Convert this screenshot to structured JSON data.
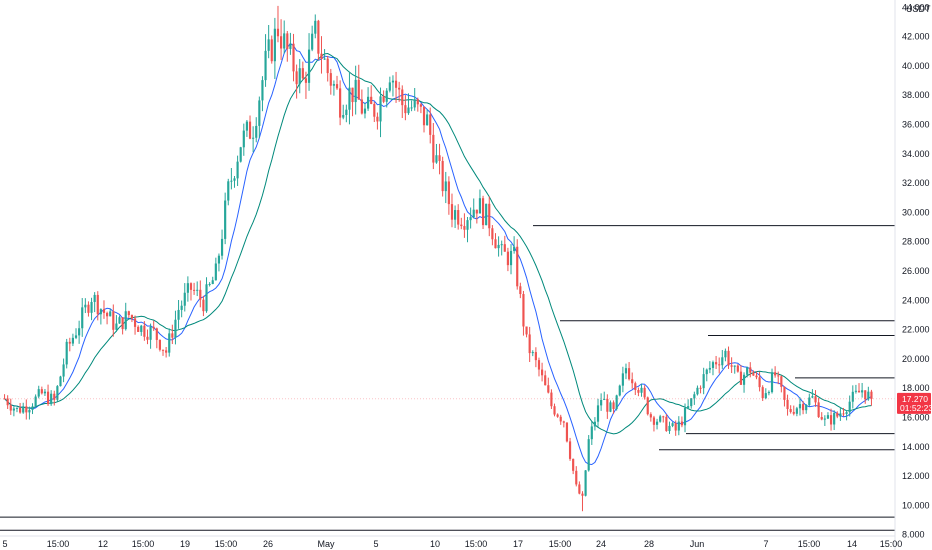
{
  "chart_data": {
    "type": "candlestick",
    "currency_label": "USDT",
    "ylim": [
      7.5,
      45.0
    ],
    "y_ticks": [
      8.0,
      10.0,
      12.0,
      14.0,
      16.0,
      18.0,
      20.0,
      22.0,
      24.0,
      26.0,
      28.0,
      30.0,
      32.0,
      34.0,
      36.0,
      38.0,
      40.0,
      42.0,
      44.0
    ],
    "y_tick_labels": [
      "8.000",
      "10.000",
      "12.000",
      "14.000",
      "16.000",
      "18.000",
      "20.000",
      "22.000",
      "24.000",
      "26.000",
      "28.000",
      "30.000",
      "32.000",
      "34.000",
      "36.000",
      "38.000",
      "40.000",
      "42.000",
      "44.000"
    ],
    "x_tick_labels": [
      "5",
      "15:00",
      "12",
      "15:00",
      "19",
      "15:00",
      "26",
      "May",
      "5",
      "10",
      "15:00",
      "17",
      "15:00",
      "24",
      "28",
      "Jun",
      "7",
      "15:00",
      "14",
      "15:00"
    ],
    "last_price_label": "17.270",
    "countdown_label": "01:52:23",
    "last_price": 17.27,
    "horizontal_levels": [
      29.1,
      22.6,
      21.6,
      18.7,
      14.9,
      13.8,
      9.2,
      8.3
    ],
    "price_path": [
      [
        0,
        17.3
      ],
      [
        4,
        16.5
      ],
      [
        8,
        16.9
      ],
      [
        12,
        17.6
      ],
      [
        16,
        17.1
      ],
      [
        20,
        20.6
      ],
      [
        24,
        22.4
      ],
      [
        28,
        24.3
      ],
      [
        32,
        23.2
      ],
      [
        36,
        22.2
      ],
      [
        40,
        23.0
      ],
      [
        44,
        22.1
      ],
      [
        48,
        21.8
      ],
      [
        52,
        20.5
      ],
      [
        56,
        23.4
      ],
      [
        60,
        24.8
      ],
      [
        64,
        23.9
      ],
      [
        68,
        25.8
      ],
      [
        72,
        31.5
      ],
      [
        76,
        34.8
      ],
      [
        80,
        35.9
      ],
      [
        84,
        40.1
      ],
      [
        88,
        42.6
      ],
      [
        92,
        40.4
      ],
      [
        96,
        38.9
      ],
      [
        100,
        42.1
      ],
      [
        104,
        39.6
      ],
      [
        108,
        37.6
      ],
      [
        112,
        38.3
      ],
      [
        116,
        36.8
      ],
      [
        120,
        37.2
      ],
      [
        124,
        39.8
      ],
      [
        128,
        37.4
      ],
      [
        132,
        37.1
      ],
      [
        136,
        36.2
      ],
      [
        140,
        32.6
      ],
      [
        144,
        30.1
      ],
      [
        148,
        29.7
      ],
      [
        152,
        30.6
      ],
      [
        156,
        29.4
      ],
      [
        160,
        27.1
      ],
      [
        164,
        26.9
      ],
      [
        168,
        21.1
      ],
      [
        172,
        19.2
      ],
      [
        176,
        16.8
      ],
      [
        180,
        15.8
      ],
      [
        184,
        11.2
      ],
      [
        186,
        10.4
      ],
      [
        188,
        14.4
      ],
      [
        192,
        17.3
      ],
      [
        196,
        16.3
      ],
      [
        200,
        19.4
      ],
      [
        204,
        18.1
      ],
      [
        208,
        16.1
      ],
      [
        212,
        15.6
      ],
      [
        216,
        15.1
      ],
      [
        220,
        16.6
      ],
      [
        224,
        18.4
      ],
      [
        228,
        19.7
      ],
      [
        232,
        20.4
      ],
      [
        236,
        18.6
      ],
      [
        240,
        19.3
      ],
      [
        244,
        17.6
      ],
      [
        248,
        18.9
      ],
      [
        252,
        16.4
      ],
      [
        256,
        16.9
      ],
      [
        260,
        17.3
      ],
      [
        264,
        15.7
      ],
      [
        268,
        16.1
      ],
      [
        272,
        17.1
      ],
      [
        276,
        17.9
      ],
      [
        279,
        17.27
      ]
    ]
  }
}
